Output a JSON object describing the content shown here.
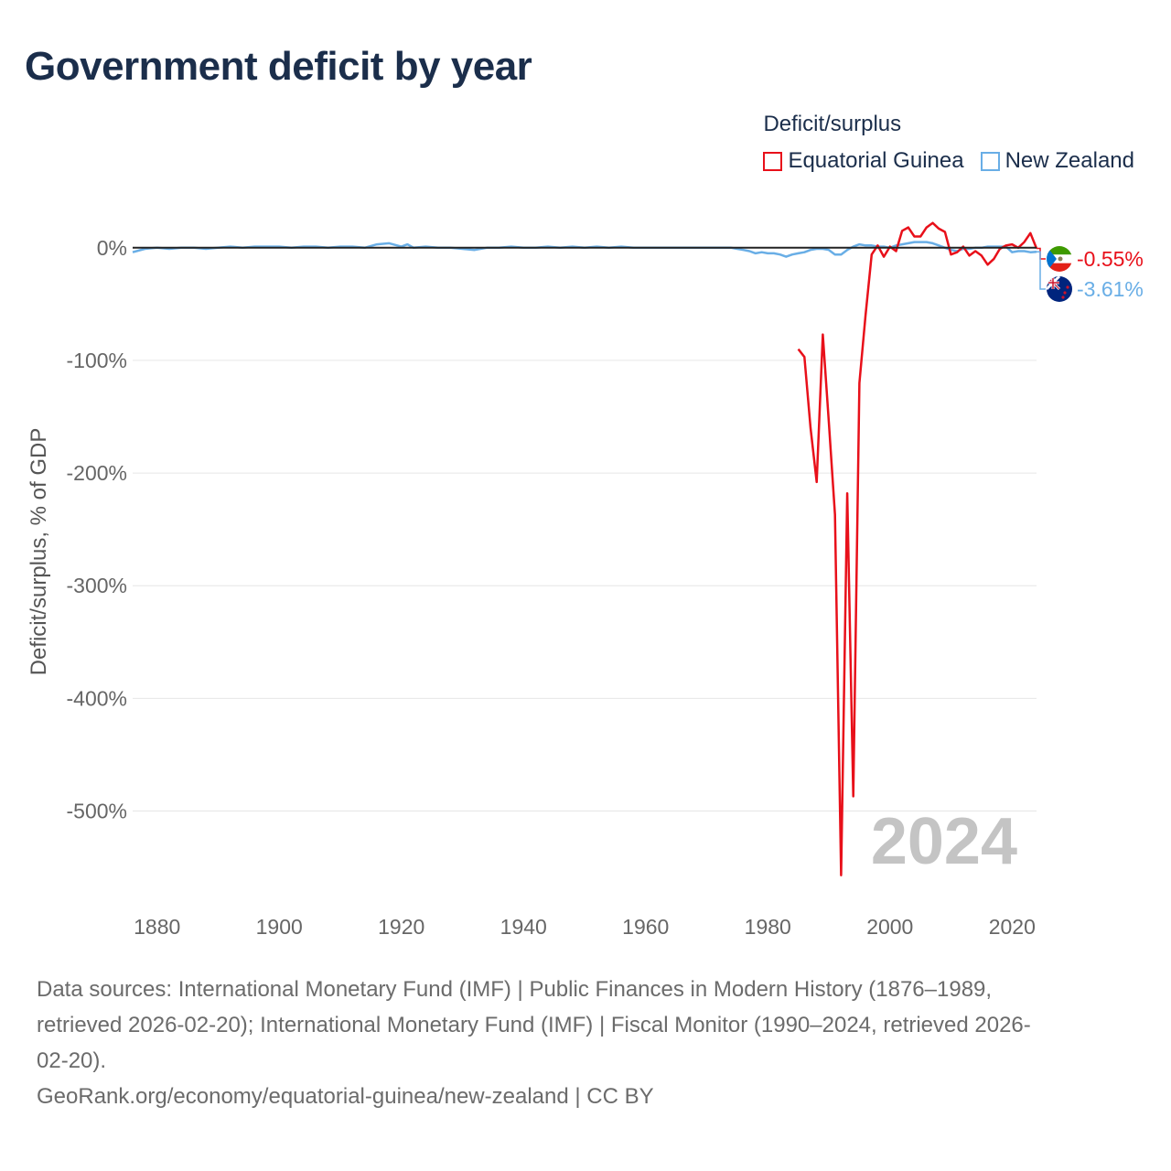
{
  "title": "Government deficit by year",
  "legend": {
    "title": "Deficit/surplus",
    "items": [
      {
        "label": "Equatorial Guinea",
        "color": "#e8101a"
      },
      {
        "label": "New Zealand",
        "color": "#69aee6"
      }
    ]
  },
  "chart_data": {
    "type": "line",
    "title": "Government deficit by year",
    "xlabel": "",
    "ylabel": "Deficit/surplus, % of GDP",
    "xlim": [
      1876,
      2024
    ],
    "ylim": [
      -580,
      25
    ],
    "x_ticks": [
      1880,
      1900,
      1920,
      1940,
      1960,
      1980,
      2000,
      2020
    ],
    "x_tick_labels": [
      "1880",
      "1900",
      "1920",
      "1940",
      "1960",
      "1980",
      "2000",
      "2020"
    ],
    "y_ticks": [
      0,
      -100,
      -200,
      -300,
      -400,
      -500
    ],
    "y_tick_labels": [
      "0%",
      "-100%",
      "-200%",
      "-300%",
      "-400%",
      "-500%"
    ],
    "zero_line": true,
    "grid": true,
    "current_year_label": "2024",
    "series": [
      {
        "name": "Equatorial Guinea",
        "color": "#e8101a",
        "end_label": "-0.55%",
        "x": [
          1985,
          1986,
          1987,
          1988,
          1989,
          1990,
          1991,
          1992,
          1993,
          1994,
          1995,
          1996,
          1997,
          1998,
          1999,
          2000,
          2001,
          2002,
          2003,
          2004,
          2005,
          2006,
          2007,
          2008,
          2009,
          2010,
          2011,
          2012,
          2013,
          2014,
          2015,
          2016,
          2017,
          2018,
          2019,
          2020,
          2021,
          2022,
          2023,
          2024
        ],
        "values": [
          -90,
          -97,
          -160,
          -208,
          -77,
          -155,
          -237,
          -557,
          -218,
          -487,
          -120,
          -60,
          -6,
          2,
          -8,
          1,
          -3,
          15,
          18,
          10,
          10,
          18,
          22,
          17,
          14,
          -6,
          -4,
          1,
          -7,
          -3,
          -7,
          -15,
          -10,
          -1,
          2,
          3,
          0,
          5,
          13,
          -0.55
        ]
      },
      {
        "name": "New Zealand",
        "color": "#69aee6",
        "end_label": "-3.61%",
        "x": [
          1876,
          1878,
          1880,
          1882,
          1884,
          1886,
          1888,
          1890,
          1892,
          1894,
          1896,
          1898,
          1900,
          1902,
          1904,
          1906,
          1908,
          1910,
          1912,
          1914,
          1916,
          1918,
          1920,
          1921,
          1922,
          1924,
          1926,
          1928,
          1930,
          1932,
          1934,
          1936,
          1938,
          1940,
          1942,
          1944,
          1946,
          1948,
          1950,
          1952,
          1954,
          1956,
          1958,
          1960,
          1962,
          1964,
          1966,
          1968,
          1970,
          1972,
          1974,
          1975,
          1976,
          1977,
          1978,
          1979,
          1980,
          1981,
          1982,
          1983,
          1984,
          1985,
          1986,
          1987,
          1988,
          1989,
          1990,
          1991,
          1992,
          1993,
          1994,
          1995,
          1996,
          1997,
          1998,
          1999,
          2000,
          2001,
          2002,
          2003,
          2004,
          2005,
          2006,
          2007,
          2008,
          2009,
          2010,
          2011,
          2012,
          2013,
          2014,
          2015,
          2016,
          2017,
          2018,
          2019,
          2020,
          2021,
          2022,
          2023,
          2024
        ],
        "values": [
          -4,
          -1,
          0,
          -1,
          0,
          0,
          -1,
          0,
          1,
          0,
          1,
          1,
          1,
          0,
          1,
          1,
          0,
          1,
          1,
          0,
          3,
          4,
          1,
          3,
          0,
          1,
          0,
          0,
          -1,
          -2,
          0,
          0,
          1,
          0,
          0,
          1,
          0,
          1,
          0,
          1,
          0,
          1,
          0,
          0,
          0,
          0,
          0,
          0,
          0,
          0,
          0,
          -1,
          -2,
          -3,
          -5,
          -4,
          -5,
          -5,
          -6,
          -8,
          -6,
          -5,
          -4,
          -2,
          -1,
          -1,
          -2,
          -6,
          -6,
          -2,
          1,
          3,
          2,
          2,
          1,
          1,
          0,
          2,
          3,
          4,
          5,
          5,
          5,
          4,
          2,
          0,
          -2,
          -3,
          -1,
          -1,
          0,
          0,
          1,
          1,
          1,
          1,
          -4,
          -3,
          -3,
          -4,
          -3.61
        ]
      }
    ]
  },
  "footer": {
    "sources_line1": "Data sources: International Monetary Fund (IMF) | Public Finances in Modern History (1876–1989,",
    "sources_line2": "retrieved 2026-02-20); International Monetary Fund (IMF) | Fiscal Monitor (1990–2024, retrieved 2026-",
    "sources_line3": "02-20).",
    "credit": "GeoRank.org/economy/equatorial-guinea/new-zealand | CC BY"
  }
}
